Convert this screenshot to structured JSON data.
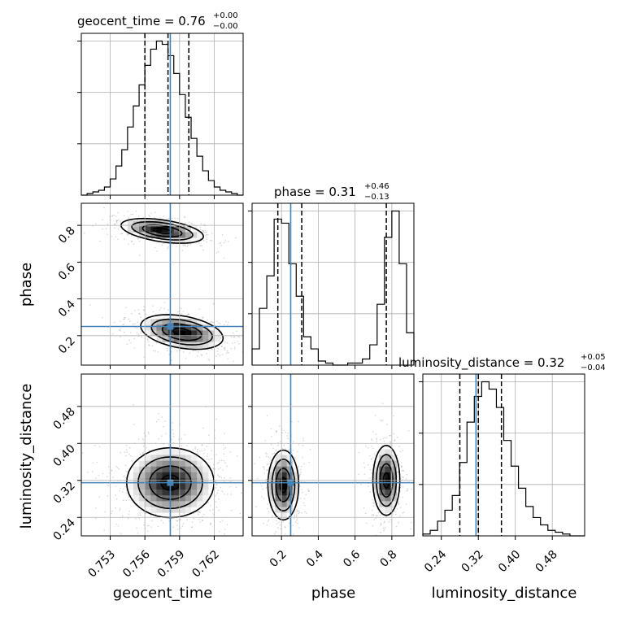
{
  "chart_data": {
    "type": "corner",
    "parameters": [
      "geocent_time",
      "phase",
      "luminosity_distance"
    ],
    "truths": {
      "geocent_time": 0.7582,
      "phase": 0.25,
      "luminosity_distance": 0.315
    },
    "titles": [
      {
        "param": "geocent_time",
        "label": "geocent_time = 0.76",
        "plus": "+0.00",
        "minus": "−0.00"
      },
      {
        "param": "phase",
        "label": "phase = 0.31",
        "plus": "+0.46",
        "minus": "−0.13"
      },
      {
        "param": "luminosity_distance",
        "label": "luminosity_distance = 0.32",
        "plus": "+0.05",
        "minus": "−0.04"
      }
    ],
    "axis_labels": {
      "x": [
        "geocent_time",
        "phase",
        "luminosity_distance"
      ],
      "y": [
        "phase",
        "luminosity_distance"
      ]
    },
    "ranges": {
      "geocent_time": [
        0.7505,
        0.7645
      ],
      "phase": [
        0.04,
        0.92
      ],
      "luminosity_distance": [
        0.2,
        0.55
      ]
    },
    "ticks": {
      "geocent_time": [
        "0.753",
        "0.756",
        "0.759",
        "0.762"
      ],
      "phase": [
        "0.2",
        "0.4",
        "0.6",
        "0.8"
      ],
      "luminosity_distance": [
        "0.24",
        "0.32",
        "0.40",
        "0.48"
      ]
    },
    "quantiles": {
      "geocent_time": [
        0.756,
        0.758,
        0.7598
      ],
      "phase": [
        0.18,
        0.31,
        0.77
      ],
      "luminosity_distance": [
        0.28,
        0.32,
        0.37
      ]
    },
    "histograms": {
      "geocent_time": {
        "edges": [
          0.7505,
          0.7645
        ],
        "counts": [
          0,
          1,
          2,
          3,
          5,
          10,
          18,
          28,
          42,
          55,
          68,
          80,
          90,
          95,
          93,
          86,
          75,
          62,
          48,
          35,
          24,
          15,
          9,
          5,
          3,
          2,
          1,
          0
        ]
      },
      "phase": {
        "edges": [
          0.04,
          0.92
        ],
        "counts": [
          8,
          28,
          44,
          72,
          70,
          50,
          34,
          14,
          8,
          2,
          1,
          0,
          0,
          1,
          1,
          3,
          10,
          30,
          63,
          76,
          50,
          16
        ]
      },
      "luminosity_distance": {
        "edges": [
          0.2,
          0.55
        ],
        "counts": [
          1,
          3,
          8,
          14,
          22,
          40,
          62,
          76,
          84,
          80,
          70,
          52,
          38,
          26,
          16,
          10,
          6,
          3,
          2,
          1,
          0,
          0
        ]
      }
    },
    "joint_modes": {
      "phase_vs_geocent_time": [
        {
          "x": 0.7575,
          "y": 0.77,
          "sx": 0.0017,
          "sy": 0.032,
          "corr": -0.45,
          "weight": 0.5
        },
        {
          "x": 0.7592,
          "y": 0.22,
          "sx": 0.0017,
          "sy": 0.045,
          "corr": -0.35,
          "weight": 0.5
        }
      ],
      "luminosity_distance_vs_geocent_time": [
        {
          "x": 0.7582,
          "y": 0.315,
          "sx": 0.0018,
          "sy": 0.036,
          "corr": 0.0,
          "weight": 1.0
        }
      ],
      "luminosity_distance_vs_phase": [
        {
          "x": 0.21,
          "y": 0.31,
          "sx": 0.04,
          "sy": 0.036,
          "corr": 0.0,
          "weight": 0.5
        },
        {
          "x": 0.77,
          "y": 0.32,
          "sx": 0.035,
          "sy": 0.036,
          "corr": 0.0,
          "weight": 0.5
        }
      ]
    },
    "grid": true,
    "truth_color": "#4682b4",
    "contour_color": "#000000"
  }
}
